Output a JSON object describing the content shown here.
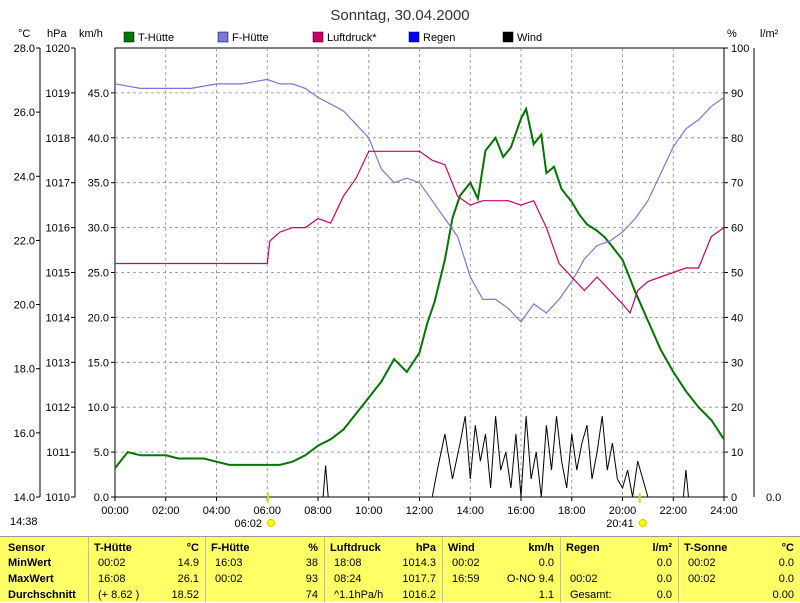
{
  "chart_data": {
    "type": "line",
    "title": "Sonntag, 30.04.2000",
    "axis_units": {
      "temp": "°C",
      "pressure": "hPa",
      "wind": "km/h",
      "humidity": "%",
      "rain": "l/m²"
    },
    "temp_ticks": [
      "28.0",
      "26.0",
      "24.0",
      "22.0",
      "20.0",
      "18.0",
      "16.0",
      "14.0"
    ],
    "pressure_ticks": [
      "1020",
      "1019",
      "1018",
      "1017",
      "1016",
      "1015",
      "1014",
      "1013",
      "1012",
      "1011",
      "1010"
    ],
    "wind_ticks": [
      "45.0",
      "40.0",
      "35.0",
      "30.0",
      "25.0",
      "20.0",
      "15.0",
      "10.0",
      "5.0",
      "0.0"
    ],
    "humidity_ticks": [
      "100",
      "90",
      "80",
      "70",
      "60",
      "50",
      "40",
      "30",
      "20",
      "10",
      "0"
    ],
    "rain_ticks": [
      "0.0"
    ],
    "x_ticks": [
      "00:00",
      "02:00",
      "04:00",
      "06:00",
      "08:00",
      "10:00",
      "12:00",
      "14:00",
      "16:00",
      "18:00",
      "20:00",
      "22:00",
      "24:00"
    ],
    "xlim": [
      0,
      24
    ],
    "temp_ylim": [
      14,
      28
    ],
    "grid": true,
    "legend_position": "top",
    "series": [
      {
        "name": "T-Hütte",
        "axis": "temp",
        "color": "#007700",
        "x": [
          0,
          0.5,
          1,
          1.5,
          2,
          2.5,
          3,
          3.5,
          4,
          4.5,
          5,
          5.5,
          6,
          6.5,
          7,
          7.5,
          8,
          8.5,
          9,
          9.5,
          10,
          10.5,
          11,
          11.5,
          12,
          12.3,
          12.6,
          13,
          13.3,
          13.6,
          14,
          14.3,
          14.6,
          15,
          15.3,
          15.6,
          16,
          16.2,
          16.5,
          16.8,
          17,
          17.3,
          17.6,
          18,
          18.3,
          18.6,
          19,
          19.3,
          19.6,
          20,
          20.5,
          21,
          21.5,
          22,
          22.5,
          23,
          23.5,
          24
        ],
        "y": [
          14.9,
          15.4,
          15.3,
          15.3,
          15.3,
          15.2,
          15.2,
          15.2,
          15.1,
          15.0,
          15.0,
          15.0,
          15.0,
          15.0,
          15.1,
          15.3,
          15.6,
          15.8,
          16.1,
          16.6,
          17.1,
          17.6,
          18.3,
          17.9,
          18.5,
          19.4,
          20.1,
          21.4,
          22.7,
          23.4,
          23.8,
          23.3,
          24.8,
          25.2,
          24.6,
          24.9,
          25.8,
          26.1,
          25.0,
          25.3,
          24.1,
          24.3,
          23.6,
          23.2,
          22.8,
          22.5,
          22.3,
          22.1,
          21.8,
          21.4,
          20.4,
          19.5,
          18.6,
          17.9,
          17.3,
          16.8,
          16.4,
          15.8
        ]
      },
      {
        "name": "F-Hütte",
        "axis": "humidity",
        "color": "#7777dd",
        "x": [
          0,
          1,
          2,
          3,
          4,
          5,
          6,
          6.5,
          7,
          7.5,
          8,
          9,
          10,
          10.5,
          11,
          11.5,
          12,
          12.5,
          13,
          13.5,
          14,
          14.5,
          15,
          15.5,
          16,
          16.5,
          17,
          17.5,
          18,
          18.5,
          19,
          19.5,
          20,
          20.5,
          21,
          21.5,
          22,
          22.5,
          23,
          23.5,
          24
        ],
        "y": [
          92,
          91,
          91,
          91,
          92,
          92,
          93,
          92,
          92,
          91,
          89,
          86,
          80,
          73,
          70,
          71,
          70,
          66,
          62,
          58,
          49,
          44,
          44,
          42,
          39,
          43,
          41,
          44,
          48,
          53,
          56,
          57,
          59,
          62,
          66,
          72,
          78,
          82,
          84,
          87,
          89
        ]
      },
      {
        "name": "Luftdruck*",
        "axis": "pressure",
        "color": "#cc0066",
        "x": [
          0,
          2,
          4,
          5,
          6,
          6.1,
          6.5,
          7,
          7.5,
          8,
          8.5,
          9,
          9.5,
          10,
          11,
          12,
          12.5,
          13,
          13.5,
          14,
          14.5,
          15,
          15.5,
          16,
          16.5,
          17,
          17.5,
          18,
          18.5,
          19,
          19.5,
          20,
          20.3,
          20.6,
          21,
          21.5,
          22,
          22.5,
          23,
          23.5,
          24
        ],
        "y": [
          1015.2,
          1015.2,
          1015.2,
          1015.2,
          1015.2,
          1015.7,
          1015.9,
          1016.0,
          1016.0,
          1016.2,
          1016.1,
          1016.7,
          1017.1,
          1017.7,
          1017.7,
          1017.7,
          1017.5,
          1017.4,
          1016.7,
          1016.5,
          1016.6,
          1016.6,
          1016.6,
          1016.5,
          1016.6,
          1016.0,
          1015.2,
          1014.9,
          1014.6,
          1014.9,
          1014.6,
          1014.3,
          1014.1,
          1014.6,
          1014.8,
          1014.9,
          1015.0,
          1015.1,
          1015.1,
          1015.8,
          1016.0
        ]
      },
      {
        "name": "Regen",
        "axis": "rain",
        "color": "#0000ff",
        "x": [],
        "y": []
      },
      {
        "name": "Wind",
        "axis": "wind",
        "color": "#000000",
        "x": [
          8.2,
          8.3,
          8.4,
          12.5,
          12.7,
          13,
          13.3,
          13.6,
          13.8,
          14,
          14.2,
          14.4,
          14.6,
          14.8,
          15,
          15.2,
          15.4,
          15.6,
          15.8,
          16,
          16.2,
          16.4,
          16.6,
          16.8,
          17,
          17.2,
          17.4,
          17.6,
          17.8,
          18,
          18.2,
          18.4,
          18.6,
          18.8,
          19,
          19.2,
          19.4,
          19.6,
          19.8,
          20,
          20.2,
          20.4,
          20.6,
          20.8,
          21,
          21.2,
          22.4,
          22.5,
          22.6
        ],
        "y": [
          0,
          3.5,
          0,
          0,
          3,
          7,
          2,
          6,
          9,
          2,
          8,
          4,
          7,
          1,
          9,
          3,
          5,
          1,
          7,
          0,
          9,
          2,
          5,
          0,
          8,
          3,
          9,
          4,
          1,
          7,
          3,
          6,
          8,
          2,
          5,
          9,
          3,
          6,
          2,
          1,
          3,
          0,
          4,
          2,
          0,
          0,
          0,
          3,
          0
        ]
      }
    ],
    "markers": [
      {
        "label": "06:02",
        "x": 6.03
      },
      {
        "label": "20:41",
        "x": 20.68
      }
    ]
  },
  "timestamp": "14:38",
  "stats": {
    "row_labels": [
      "Sensor",
      "MinWert",
      "MaxWert",
      "Durchschnitt"
    ],
    "columns": [
      {
        "name": "T-Hütte",
        "unit": "°C",
        "rows": [
          [
            "00:02",
            "14.9"
          ],
          [
            "16:08",
            "26.1"
          ],
          [
            "(+ 8.62 )",
            "18.52"
          ]
        ]
      },
      {
        "name": "F-Hütte",
        "unit": "%",
        "rows": [
          [
            "16:03",
            "38"
          ],
          [
            "00:02",
            "93"
          ],
          [
            "",
            "74"
          ]
        ]
      },
      {
        "name": "Luftdruck",
        "unit": "hPa",
        "rows": [
          [
            "18:08",
            "1014.3"
          ],
          [
            "08:24",
            "1017.7"
          ],
          [
            "^1.1hPa/h",
            "1016.2"
          ]
        ]
      },
      {
        "name": "Wind",
        "unit": "km/h",
        "rows": [
          [
            "00:02",
            "0.0"
          ],
          [
            "16:59",
            "O-NO 9.4"
          ],
          [
            "",
            "1.1"
          ]
        ]
      },
      {
        "name": "Regen",
        "unit": "l/m²",
        "rows": [
          [
            "",
            "0.0"
          ],
          [
            "00:02",
            "0.0"
          ],
          [
            "Gesamt:",
            "0.0"
          ]
        ]
      },
      {
        "name": "T-Sonne",
        "unit": "°C",
        "rows": [
          [
            "00:02",
            "0.0"
          ],
          [
            "00:02",
            "0.0"
          ],
          [
            "",
            "0.00"
          ]
        ]
      }
    ]
  }
}
